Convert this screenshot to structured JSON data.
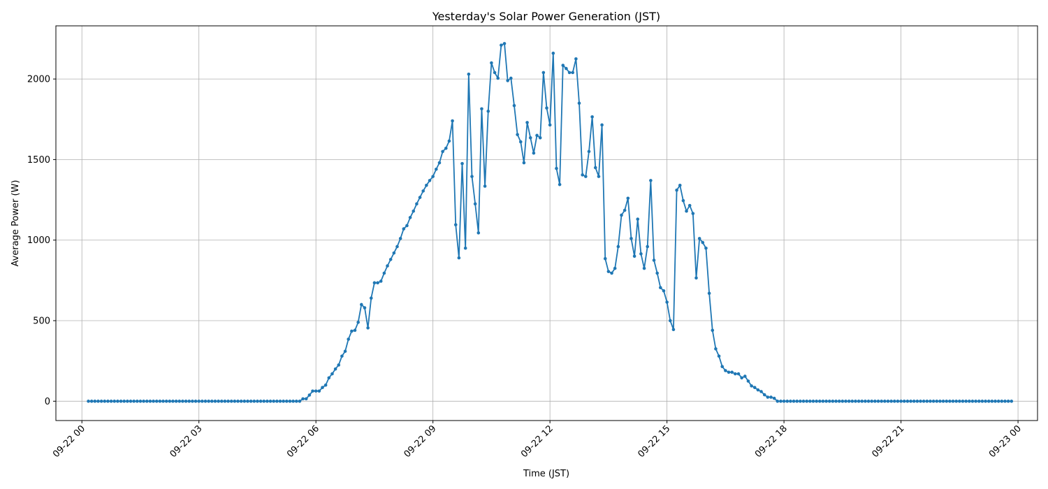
{
  "chart_data": {
    "type": "line",
    "title": "Yesterday's Solar Power Generation (JST)",
    "xlabel": "Time (JST)",
    "ylabel": "Average Power (W)",
    "grid": true,
    "marker": "circle",
    "line_color": "#1f77b4",
    "x_start": "09-22 00:10",
    "x_step_minutes": 5,
    "x_range": [
      "09-21 23:20",
      "09-23 00:30"
    ],
    "x_ticks": [
      "09-22 00",
      "09-22 03",
      "09-22 06",
      "09-22 09",
      "09-22 12",
      "09-22 15",
      "09-22 18",
      "09-22 21",
      "09-23 00"
    ],
    "ylim": [
      -120,
      2330
    ],
    "y_ticks": [
      0,
      500,
      1000,
      1500,
      2000
    ],
    "series": [
      {
        "values": [
          0,
          0,
          0,
          0,
          0,
          0,
          0,
          0,
          0,
          0,
          0,
          0,
          0,
          0,
          0,
          0,
          0,
          0,
          0,
          0,
          0,
          0,
          0,
          0,
          0,
          0,
          0,
          0,
          0,
          0,
          0,
          0,
          0,
          0,
          0,
          0,
          0,
          0,
          0,
          0,
          0,
          0,
          0,
          0,
          0,
          0,
          0,
          0,
          0,
          0,
          0,
          0,
          0,
          0,
          0,
          0,
          0,
          0,
          0,
          0,
          0,
          0,
          0,
          0,
          0,
          0,
          15,
          15,
          38,
          63,
          63,
          63,
          85,
          100,
          145,
          170,
          200,
          225,
          280,
          310,
          385,
          435,
          440,
          490,
          600,
          580,
          455,
          640,
          735,
          735,
          745,
          795,
          840,
          880,
          920,
          960,
          1010,
          1070,
          1090,
          1140,
          1180,
          1225,
          1265,
          1305,
          1340,
          1370,
          1395,
          1440,
          1480,
          1550,
          1570,
          1615,
          1740,
          1095,
          890,
          1475,
          950,
          2030,
          1395,
          1225,
          1045,
          1815,
          1335,
          1800,
          2100,
          2040,
          2005,
          2210,
          2220,
          1990,
          2005,
          1835,
          1655,
          1610,
          1480,
          1730,
          1635,
          1540,
          1650,
          1635,
          2040,
          1820,
          1715,
          2160,
          1445,
          1345,
          2085,
          2065,
          2040,
          2040,
          2125,
          1850,
          1405,
          1395,
          1550,
          1765,
          1450,
          1395,
          1715,
          885,
          805,
          795,
          825,
          960,
          1155,
          1185,
          1260,
          1010,
          900,
          1130,
          915,
          825,
          960,
          1370,
          875,
          795,
          705,
          685,
          615,
          500,
          445,
          1310,
          1340,
          1245,
          1180,
          1215,
          1165,
          765,
          1010,
          985,
          950,
          670,
          440,
          325,
          280,
          215,
          190,
          180,
          180,
          170,
          170,
          145,
          155,
          125,
          95,
          85,
          70,
          60,
          40,
          25,
          25,
          18,
          0,
          0,
          0,
          0,
          0,
          0,
          0,
          0,
          0,
          0,
          0,
          0,
          0,
          0,
          0,
          0,
          0,
          0,
          0,
          0,
          0,
          0,
          0,
          0,
          0,
          0,
          0,
          0,
          0,
          0,
          0,
          0,
          0,
          0,
          0,
          0,
          0,
          0,
          0,
          0,
          0,
          0,
          0,
          0,
          0,
          0,
          0,
          0,
          0,
          0,
          0,
          0,
          0,
          0,
          0,
          0,
          0,
          0,
          0,
          0,
          0,
          0,
          0,
          0,
          0,
          0,
          0,
          0,
          0,
          0,
          0,
          0,
          0
        ]
      }
    ]
  }
}
